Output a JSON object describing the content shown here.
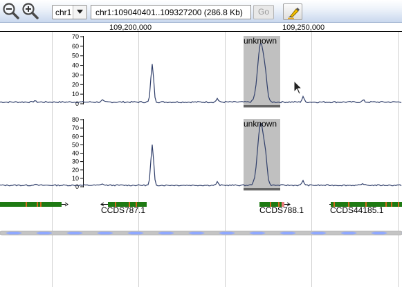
{
  "toolbar": {
    "zoom_out_icon": "zoom-out-magnifier",
    "zoom_in_icon": "zoom-in-magnifier",
    "chromosome_select": {
      "value": "chr1"
    },
    "locus_input": {
      "value": "chr1:109040401..109327200 (286.8 Kb)"
    },
    "go_label": "Go",
    "highlight_icon": "highlighter-pen"
  },
  "ruler": {
    "ticks": [
      "109,200,000",
      "109,250,000"
    ]
  },
  "signal_tracks": [
    {
      "y_ticks": [
        "70",
        "60",
        "50",
        "40",
        "30",
        "20",
        "10",
        "0"
      ],
      "ymax": 70,
      "peak_label": "unknown"
    },
    {
      "y_ticks": [
        "80",
        "70",
        "60",
        "50",
        "40",
        "30",
        "20",
        "10",
        "0"
      ],
      "ymax": 80,
      "peak_label": "unknown"
    }
  ],
  "genes": [
    {
      "name": ""
    },
    {
      "name": "CCDS787.1"
    },
    {
      "name": "CCDS788.1"
    },
    {
      "name": "CCDS44185.1"
    }
  ],
  "colors": {
    "signal_line": "#2f3e6a",
    "highlight_region": "#c0c0c0",
    "gene_body": "#1e7a13",
    "exon_marker": "#d2691e",
    "coverage_dash": "#8fa8ff"
  }
}
